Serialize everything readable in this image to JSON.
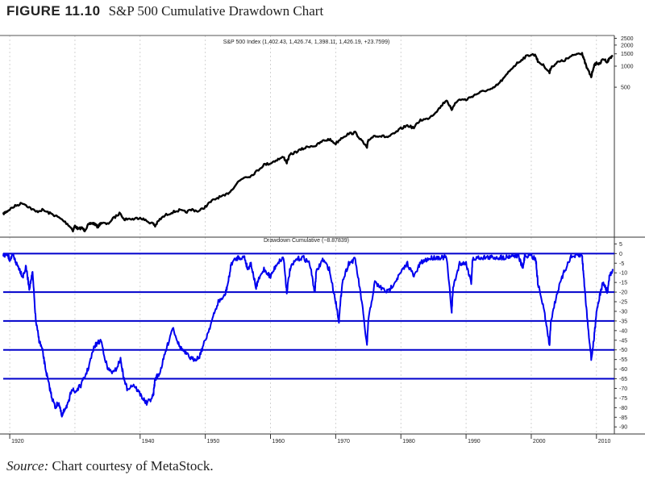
{
  "figure": {
    "number": "FIGURE 11.10",
    "title": "S&P 500 Cumulative Drawdown Chart"
  },
  "source": {
    "label": "Source:",
    "text": "Chart courtesy of MetaStock."
  },
  "colors": {
    "price_line": "#000000",
    "drawdown_line": "#0000ee",
    "level_lines": "#0000cc",
    "grid": "#c8c8c8",
    "axis_text": "#222222"
  },
  "chart_data": [
    {
      "type": "line",
      "title": "S&P 500 Index (1,402.43, 1,426.74, 1,398.11, 1,426.19, +23.7599)",
      "scale": "log",
      "y_ticks": [
        2500,
        2000,
        1500,
        1000,
        500
      ],
      "ylim": [
        4,
        2600
      ],
      "xlim": [
        1919,
        2012.5
      ],
      "series": [
        {
          "x": [
            1919,
            1919.5,
            1920,
            1921,
            1922,
            1923,
            1924,
            1925,
            1926,
            1927,
            1928,
            1929,
            1929.7,
            1930,
            1930.5,
            1931,
            1931.5,
            1932,
            1932.5,
            1933,
            1933.5,
            1934,
            1935,
            1936,
            1937,
            1937.5,
            1938,
            1939,
            1940,
            1941,
            1942,
            1942.3,
            1943,
            1944,
            1945,
            1946,
            1947,
            1948,
            1949,
            1950,
            1951,
            1952,
            1953,
            1954,
            1955,
            1956,
            1957,
            1958,
            1959,
            1960,
            1961,
            1962,
            1962.5,
            1963,
            1964,
            1965,
            1966,
            1967,
            1968,
            1969,
            1970,
            1971,
            1972,
            1973,
            1974,
            1974.8,
            1975,
            1976,
            1977,
            1978,
            1979,
            1980,
            1981,
            1982,
            1983,
            1984,
            1985,
            1986,
            1987,
            1987.8,
            1988,
            1989,
            1990,
            1991,
            1992,
            1993,
            1994,
            1995,
            1996,
            1997,
            1998,
            1999,
            2000,
            2000.7,
            2001,
            2002,
            2002.8,
            2003,
            2004,
            2005,
            2006,
            2007,
            2007.8,
            2008,
            2008.5,
            2009.2,
            2009.6,
            2010,
            2010.5,
            2011,
            2011.7,
            2012,
            2012.5
          ],
          "values": [
            7.8,
            8.3,
            9.0,
            10.2,
            11.1,
            9.6,
            8.3,
            8.8,
            8.0,
            7.3,
            6.4,
            5.4,
            4.5,
            5.2,
            4.7,
            4.9,
            4.5,
            5.3,
            5.7,
            5.6,
            5.0,
            5.8,
            5.5,
            6.8,
            8.0,
            6.4,
            6.6,
            6.5,
            6.9,
            6.1,
            5.6,
            5.2,
            6.4,
            7.5,
            8.2,
            8.7,
            8.2,
            8.9,
            8.4,
            9.8,
            11.8,
            13.3,
            14.0,
            16.8,
            22.0,
            26.0,
            27.0,
            32.0,
            39.0,
            41.0,
            46.0,
            50.0,
            42.0,
            54.0,
            60.0,
            66.0,
            72.0,
            73.0,
            85.0,
            90.0,
            78.0,
            96.0,
            108.0,
            112.0,
            85.0,
            68.0,
            88.0,
            102.0,
            100.0,
            97.0,
            108.0,
            128.0,
            142.0,
            131.0,
            170.0,
            175.0,
            205.0,
            255.0,
            330.0,
            230.0,
            270.0,
            335.0,
            330.0,
            375.0,
            415.0,
            450.0,
            465.0,
            560.0,
            700.0,
            930.0,
            1130.0,
            1340.0,
            1480.0,
            1420.0,
            1170.0,
            1000.0,
            800.0,
            950.0,
            1130.0,
            1200.0,
            1350.0,
            1500.0,
            1540.0,
            1300.0,
            950.0,
            700.0,
            1000.0,
            1115.0,
            1060.0,
            1280.0,
            1150.0,
            1300.0,
            1426.0
          ]
        }
      ]
    },
    {
      "type": "line",
      "title": "Drawdown Cumulative (−8.87839)",
      "y_ticks": [
        5,
        0,
        -5,
        -10,
        -15,
        -20,
        -25,
        -30,
        -35,
        -40,
        -45,
        -50,
        -55,
        -60,
        -65,
        -70,
        -75,
        -80,
        -85,
        -90
      ],
      "ylim": [
        -92,
        6
      ],
      "reference_lines": [
        0,
        -20,
        -35,
        -50,
        -65
      ],
      "x_ticks": [
        1920,
        1940,
        1950,
        1960,
        1970,
        1980,
        1990,
        2000,
        2010
      ],
      "xlim": [
        1919,
        2012.5
      ],
      "series": [
        {
          "x": [
            1919,
            1919.5,
            1920,
            1920.5,
            1921,
            1921.5,
            1922,
            1922.5,
            1923,
            1923.5,
            1924,
            1924.5,
            1925,
            1925.5,
            1926,
            1926.5,
            1927,
            1927.5,
            1928,
            1928.5,
            1929,
            1929.5,
            1930,
            1931,
            1932,
            1933,
            1934,
            1935,
            1936,
            1937,
            1937.5,
            1938,
            1939,
            1940,
            1941,
            1942,
            1942.3,
            1943,
            1944,
            1945,
            1946,
            1947,
            1948,
            1949,
            1950,
            1951,
            1952,
            1953,
            1953.5,
            1954,
            1955,
            1956,
            1956.5,
            1957,
            1957.8,
            1958,
            1959,
            1960,
            1961,
            1962,
            1962.5,
            1963,
            1964,
            1965,
            1966,
            1966.8,
            1967,
            1968,
            1969,
            1970,
            1970.5,
            1971,
            1972,
            1973,
            1974,
            1974.8,
            1975,
            1976,
            1977,
            1978,
            1979,
            1980,
            1981,
            1982,
            1983,
            1984,
            1985,
            1986,
            1987,
            1987.8,
            1988,
            1989,
            1990,
            1990.8,
            1991,
            1992,
            1993,
            1994,
            1995,
            1996,
            1997,
            1998,
            1998.7,
            1999,
            2000,
            2000.7,
            2001,
            2002,
            2002.8,
            2003,
            2004,
            2005,
            2006,
            2007,
            2007.8,
            2008,
            2008.5,
            2009.2,
            2009.6,
            2010,
            2010.5,
            2011,
            2011.7,
            2012,
            2012.5
          ],
          "values": [
            -1,
            0,
            -3,
            -1,
            -5,
            -8,
            -12,
            -7,
            -18,
            -10,
            -35,
            -45,
            -50,
            -60,
            -68,
            -75,
            -80,
            -77,
            -85,
            -80,
            -78,
            -70,
            -72,
            -68,
            -60,
            -48,
            -45,
            -60,
            -62,
            -55,
            -65,
            -70,
            -68,
            -73,
            -78,
            -74,
            -65,
            -62,
            -50,
            -38,
            -48,
            -52,
            -55,
            -54,
            -45,
            -35,
            -25,
            -22,
            -15,
            -5,
            -2,
            -2,
            -8,
            -5,
            -18,
            -15,
            -8,
            -12,
            -5,
            -2,
            -20,
            -8,
            -3,
            -2,
            -5,
            -20,
            -10,
            -3,
            -8,
            -25,
            -35,
            -15,
            -5,
            -3,
            -25,
            -48,
            -35,
            -15,
            -18,
            -20,
            -15,
            -10,
            -5,
            -12,
            -5,
            -3,
            -2,
            -2,
            -2,
            -30,
            -18,
            -5,
            -5,
            -15,
            -3,
            -2,
            -2,
            -2,
            -2,
            -2,
            -1,
            -1,
            -8,
            -1,
            -1,
            -3,
            -15,
            -30,
            -48,
            -35,
            -20,
            -10,
            -2,
            -1,
            -1,
            -10,
            -30,
            -55,
            -45,
            -30,
            -22,
            -15,
            -20,
            -12,
            -8
          ]
        }
      ]
    }
  ]
}
